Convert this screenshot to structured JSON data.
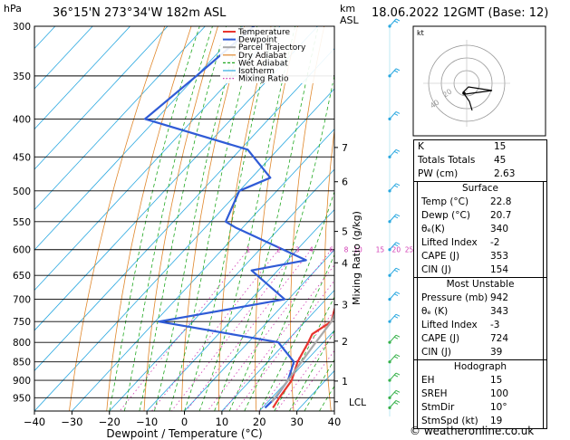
{
  "header": {
    "hpa_label": "hPa",
    "location": "36°15'N  273°34'W  182m  ASL",
    "km_label": "km",
    "asl_label": "ASL",
    "datetime": "18.06.2022  12GMT  (Base: 12)"
  },
  "footer": {
    "credit": "© weatheronline.co.uk"
  },
  "colors": {
    "temperature": "#e8352e",
    "dewpoint": "#2f5bd6",
    "parcel": "#a9a9a9",
    "dry_adiabat": "#e0872b",
    "wet_adiabat": "#20a820",
    "isotherm": "#2aa8e0",
    "mixing_ratio": "#d23cb4"
  },
  "chart_data": {
    "type": "line",
    "title": "",
    "xlabel": "Dewpoint / Temperature (°C)",
    "ylabel": "",
    "right_axis_label": "Mixing Ratio (g/kg)",
    "xlim": [
      -40,
      40
    ],
    "x_ticks": [
      "−40",
      "−30",
      "−20",
      "−10",
      "0",
      "10",
      "20",
      "30",
      "40"
    ],
    "pressure_levels": [
      300,
      350,
      400,
      450,
      500,
      550,
      600,
      650,
      700,
      750,
      800,
      850,
      900,
      950
    ],
    "pressure_range": [
      300,
      990
    ],
    "height_ticks": [
      {
        "label": "7",
        "p": 437
      },
      {
        "label": "6",
        "p": 486
      },
      {
        "label": "5",
        "p": 567
      },
      {
        "label": "4",
        "p": 625
      },
      {
        "label": "3",
        "p": 712
      },
      {
        "label": "2",
        "p": 797
      },
      {
        "label": "1",
        "p": 902
      }
    ],
    "lcl": {
      "label": "LCL",
      "p": 962
    },
    "mixing_ratio_labels": [
      "1",
      "2",
      "3",
      "4",
      "6",
      "8",
      "10",
      "15",
      "20",
      "25"
    ],
    "legend": [
      "Temperature",
      "Dewpoint",
      "Parcel Trajectory",
      "Dry Adiabat",
      "Wet Adiabat",
      "Isotherm",
      "Mixing Ratio"
    ],
    "series": [
      {
        "name": "Temperature",
        "points": [
          [
            300,
            -29
          ],
          [
            350,
            -21
          ],
          [
            400,
            -14
          ],
          [
            450,
            -8
          ],
          [
            500,
            -4
          ],
          [
            550,
            1
          ],
          [
            600,
            5
          ],
          [
            650,
            9
          ],
          [
            700,
            13
          ],
          [
            750,
            17
          ],
          [
            780,
            15
          ],
          [
            800,
            16
          ],
          [
            850,
            18
          ],
          [
            900,
            21
          ],
          [
            950,
            22
          ],
          [
            980,
            22.8
          ]
        ]
      },
      {
        "name": "Dewpoint",
        "points": [
          [
            300,
            -77
          ],
          [
            350,
            -80
          ],
          [
            400,
            -83
          ],
          [
            440,
            -48
          ],
          [
            480,
            -35
          ],
          [
            500,
            -40
          ],
          [
            550,
            -36
          ],
          [
            560,
            -32
          ],
          [
            620,
            -5
          ],
          [
            640,
            -17
          ],
          [
            700,
            -1
          ],
          [
            750,
            -29
          ],
          [
            800,
            8
          ],
          [
            850,
            17
          ],
          [
            900,
            20
          ],
          [
            950,
            21
          ],
          [
            980,
            20.7
          ]
        ]
      },
      {
        "name": "Parcel Trajectory",
        "points": [
          [
            300,
            -21
          ],
          [
            350,
            -13
          ],
          [
            400,
            -7
          ],
          [
            450,
            -3
          ],
          [
            500,
            1
          ],
          [
            550,
            4
          ],
          [
            600,
            8
          ],
          [
            650,
            11
          ],
          [
            700,
            14
          ],
          [
            750,
            17
          ],
          [
            800,
            18
          ],
          [
            850,
            19
          ],
          [
            900,
            20
          ],
          [
            962,
            21
          ]
        ]
      }
    ]
  },
  "hodograph": {
    "label": "kt",
    "ring_labels": [
      "20",
      "40"
    ]
  },
  "indices": {
    "rows": [
      {
        "label": "K",
        "value": "15"
      },
      {
        "label": "Totals Totals",
        "value": "45"
      },
      {
        "label": "PW (cm)",
        "value": "2.63"
      }
    ],
    "surface": {
      "title": "Surface",
      "rows": [
        {
          "label": "Temp (°C)",
          "value": "22.8"
        },
        {
          "label": "Dewp (°C)",
          "value": "20.7"
        },
        {
          "label": "θₑ(K)",
          "value": "340"
        },
        {
          "label": "Lifted Index",
          "value": "-2"
        },
        {
          "label": "CAPE (J)",
          "value": "353"
        },
        {
          "label": "CIN (J)",
          "value": "154"
        }
      ]
    },
    "most_unstable": {
      "title": "Most Unstable",
      "rows": [
        {
          "label": "Pressure (mb)",
          "value": "942"
        },
        {
          "label": "θₑ (K)",
          "value": "343"
        },
        {
          "label": "Lifted Index",
          "value": "-3"
        },
        {
          "label": "CAPE (J)",
          "value": "724"
        },
        {
          "label": "CIN (J)",
          "value": "39"
        }
      ]
    },
    "hodograph": {
      "title": "Hodograph",
      "rows": [
        {
          "label": "EH",
          "value": "15"
        },
        {
          "label": "SREH",
          "value": "100"
        },
        {
          "label": "StmDir",
          "value": "10°"
        },
        {
          "label": "StmSpd (kt)",
          "value": "19"
        }
      ]
    }
  }
}
